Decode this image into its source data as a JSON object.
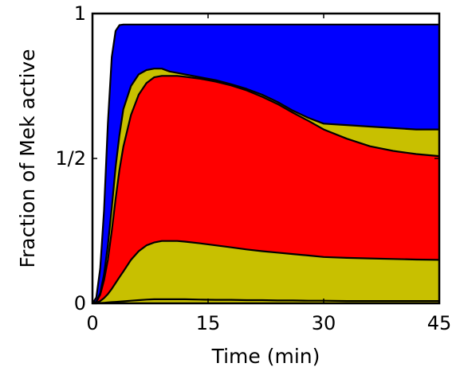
{
  "chart_data": {
    "type": "area",
    "stacked": true,
    "xlabel": "Time (min)",
    "ylabel": "Fraction of Mek active",
    "xlim": [
      0,
      45
    ],
    "ylim": [
      0,
      1
    ],
    "xticks": [
      {
        "value": 0,
        "label": "0"
      },
      {
        "value": 15,
        "label": "15"
      },
      {
        "value": 30,
        "label": "30"
      },
      {
        "value": 45,
        "label": "45"
      }
    ],
    "yticks": [
      {
        "value": 0,
        "label": "0"
      },
      {
        "value": 0.5,
        "label": "1/2"
      },
      {
        "value": 1,
        "label": "1"
      }
    ],
    "x": [
      0,
      0.5,
      1,
      1.5,
      2,
      2.5,
      3,
      3.5,
      4,
      5,
      6,
      7,
      8,
      9,
      10,
      11,
      12,
      14,
      16,
      18,
      20,
      22,
      24,
      26,
      28,
      30,
      33,
      36,
      39,
      42,
      45
    ],
    "series_colors": [
      "#c8c000",
      "#c8c000",
      "#ff0000",
      "#c8c000",
      "#0000ff"
    ],
    "boundaries": [
      [
        0,
        0.0,
        0.001,
        0.002,
        0.003,
        0.004,
        0.005,
        0.006,
        0.007,
        0.009,
        0.011,
        0.013,
        0.014,
        0.014,
        0.014,
        0.014,
        0.014,
        0.013,
        0.012,
        0.012,
        0.011,
        0.011,
        0.01,
        0.01,
        0.009,
        0.009,
        0.008,
        0.008,
        0.008,
        0.008,
        0.008
      ],
      [
        0,
        0.002,
        0.008,
        0.018,
        0.032,
        0.05,
        0.07,
        0.09,
        0.11,
        0.15,
        0.18,
        0.2,
        0.21,
        0.215,
        0.215,
        0.215,
        0.213,
        0.207,
        0.2,
        0.193,
        0.186,
        0.18,
        0.175,
        0.17,
        0.165,
        0.16,
        0.157,
        0.155,
        0.153,
        0.151,
        0.15
      ],
      [
        0,
        0.005,
        0.03,
        0.08,
        0.15,
        0.25,
        0.36,
        0.46,
        0.54,
        0.65,
        0.72,
        0.76,
        0.78,
        0.785,
        0.785,
        0.785,
        0.782,
        0.775,
        0.765,
        0.752,
        0.735,
        0.713,
        0.688,
        0.658,
        0.63,
        0.6,
        0.568,
        0.542,
        0.526,
        0.515,
        0.508
      ],
      [
        0,
        0.005,
        0.035,
        0.1,
        0.2,
        0.33,
        0.47,
        0.58,
        0.67,
        0.75,
        0.79,
        0.805,
        0.81,
        0.81,
        0.8,
        0.795,
        0.79,
        0.78,
        0.77,
        0.756,
        0.74,
        0.72,
        0.695,
        0.665,
        0.64,
        0.62,
        0.615,
        0.61,
        0.605,
        0.6,
        0.6
      ],
      [
        0,
        0.02,
        0.12,
        0.32,
        0.62,
        0.85,
        0.94,
        0.96,
        0.962,
        0.962,
        0.962,
        0.962,
        0.962,
        0.962,
        0.962,
        0.962,
        0.962,
        0.962,
        0.962,
        0.962,
        0.962,
        0.962,
        0.962,
        0.962,
        0.962,
        0.962,
        0.962,
        0.962,
        0.962,
        0.962,
        0.962
      ]
    ],
    "grid": false,
    "legend": "none"
  }
}
